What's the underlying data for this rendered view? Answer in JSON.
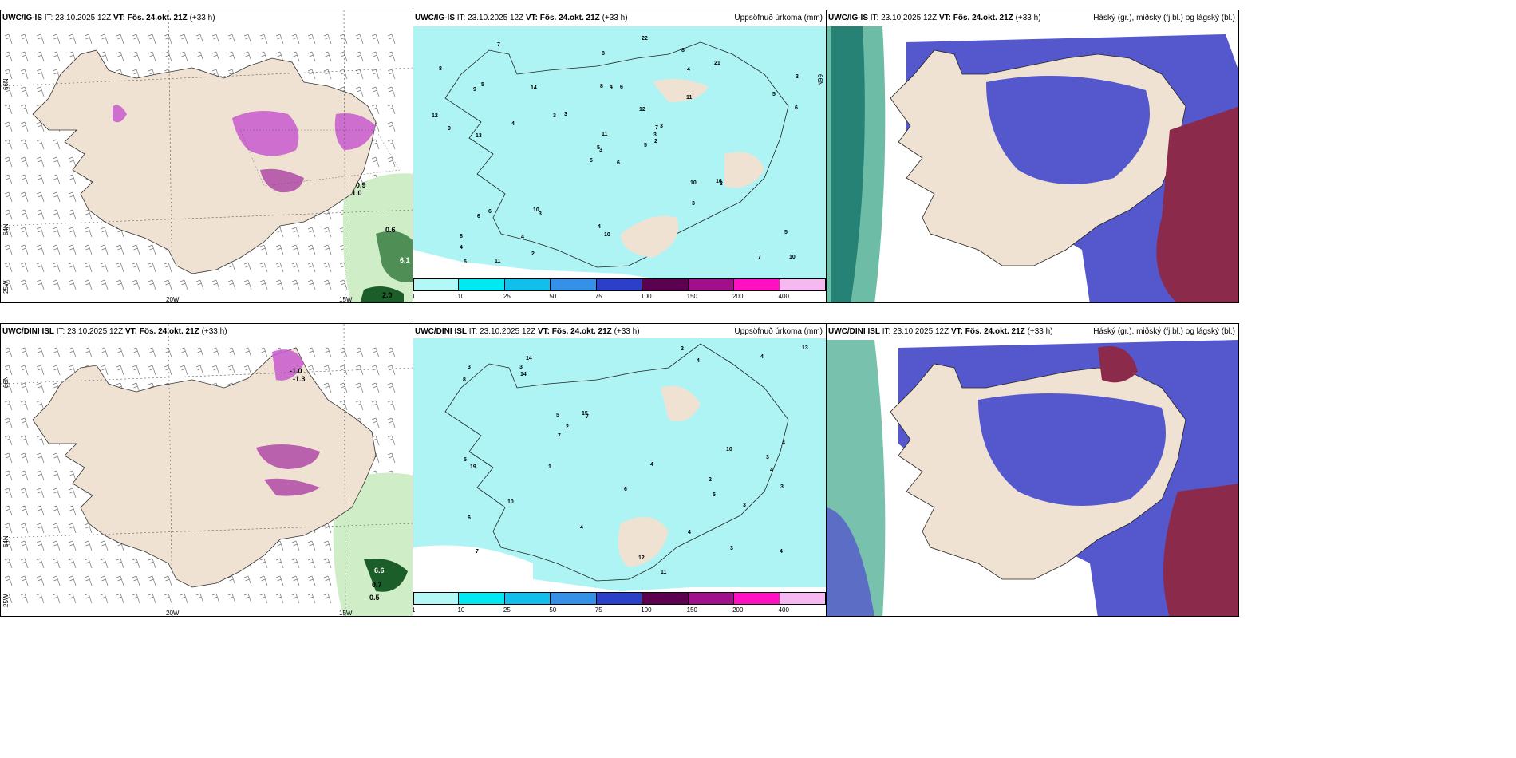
{
  "panels": {
    "r1": {
      "left": {
        "model": "UWC/IG-IS",
        "it": "IT: 23.10.2025 12Z",
        "vt": "VT: Fös. 24.okt. 21Z",
        "lead": "(+33 h)"
      },
      "mid": {
        "model": "UWC/IG-IS",
        "it": "IT: 23.10.2025 12Z",
        "vt": "VT: Fös. 24.okt. 21Z",
        "lead": "(+33 h)",
        "right_title": "Uppsöfnuð úrkoma (mm)"
      },
      "right": {
        "model": "UWC/IG-IS",
        "it": "IT: 23.10.2025 12Z",
        "vt": "VT: Fös. 24.okt. 21Z",
        "lead": "(+33 h)",
        "right_title": "Háský (gr.), miðský (fj.bl.) og lágský (bl.)"
      }
    },
    "r2": {
      "left": {
        "model": "UWC/DINI ISL",
        "it": "IT: 23.10.2025 12Z",
        "vt": "VT: Fös. 24.okt. 21Z",
        "lead": "(+33 h)"
      },
      "mid": {
        "model": "UWC/DINI ISL",
        "it": "IT: 23.10.2025 12Z",
        "vt": "VT: Fös. 24.okt. 21Z",
        "lead": "(+33 h)",
        "right_title": "Uppsöfnuð úrkoma (mm)"
      },
      "right": {
        "model": "UWC/DINI ISL",
        "it": "IT: 23.10.2025 12Z",
        "vt": "VT: Fös. 24.okt. 21Z",
        "lead": "(+33 h)",
        "right_title": "Hásk&#253; (gr.), miðský (fj.bl.) og lágský (bl.)"
      }
    }
  },
  "axis_labels": {
    "lat_66": "66N",
    "lat_64": "64N",
    "lon_25": "25W",
    "lon_20": "20W",
    "lon_15": "15W"
  },
  "legend": {
    "labels": [
      "1",
      "10",
      "25",
      "50",
      "75",
      "100",
      "150",
      "200",
      "400"
    ],
    "colors": [
      "#b3f7f7",
      "#00e8f0",
      "#10c0ea",
      "#3590e8",
      "#2b3fc8",
      "#5c0050",
      "#a0108a",
      "#ff10c0",
      "#f5b8f0"
    ]
  },
  "precip_values_top": [
    "6",
    "9",
    "3",
    "8",
    "7",
    "3",
    "8",
    "6",
    "4",
    "5",
    "7",
    "10",
    "13",
    "3",
    "5",
    "11",
    "11",
    "8",
    "12",
    "6",
    "3",
    "4",
    "4",
    "4",
    "3",
    "3",
    "5",
    "8",
    "9",
    "10",
    "6",
    "5",
    "4",
    "11",
    "14",
    "21",
    "10",
    "7",
    "5",
    "16",
    "22",
    "3",
    "4",
    "3",
    "2",
    "12",
    "3",
    "5",
    "10",
    "2",
    "6",
    "5",
    "8"
  ],
  "precip_values_bottom": [
    "2",
    "4",
    "7",
    "14",
    "7",
    "3",
    "6",
    "4",
    "5",
    "11",
    "8",
    "5",
    "3",
    "4",
    "4",
    "4",
    "6",
    "4",
    "15",
    "10",
    "13",
    "4",
    "7",
    "3",
    "2",
    "3",
    "5",
    "19",
    "14",
    "10",
    "12",
    "4",
    "2",
    "1",
    "3",
    "3"
  ],
  "wind_labels_top": [
    "0.9",
    "1.0",
    "0.6",
    "6.1",
    "2.0"
  ],
  "wind_labels_bottom": [
    "-1.0",
    "-1.3",
    "6.6",
    "0.7",
    "0.5"
  ]
}
